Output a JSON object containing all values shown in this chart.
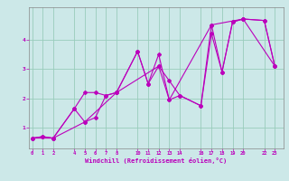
{
  "xlabel": "Windchill (Refroidissement éolien,°C)",
  "background_color": "#cce8e8",
  "grid_color": "#99ccbb",
  "line_color": "#bb00bb",
  "line1": {
    "x": [
      0,
      1,
      2,
      4,
      5,
      6,
      7,
      8,
      10,
      11,
      12,
      13,
      14,
      16,
      17,
      18,
      19,
      20,
      22,
      23
    ],
    "y": [
      0.65,
      0.7,
      0.65,
      1.65,
      2.2,
      2.2,
      2.1,
      2.2,
      3.6,
      2.5,
      3.1,
      2.6,
      2.1,
      1.75,
      4.2,
      2.9,
      4.6,
      4.7,
      4.65,
      3.1
    ]
  },
  "line2": {
    "x": [
      0,
      1,
      2,
      4,
      5,
      6,
      7,
      8,
      10,
      11,
      12,
      13,
      14,
      16,
      17,
      18,
      19,
      20,
      22,
      23
    ],
    "y": [
      0.65,
      0.7,
      0.65,
      1.65,
      1.2,
      1.35,
      2.1,
      2.2,
      3.6,
      2.5,
      3.5,
      1.95,
      2.1,
      1.75,
      4.5,
      2.9,
      4.6,
      4.7,
      4.65,
      3.1
    ]
  },
  "line3": {
    "x": [
      0,
      2,
      5,
      8,
      12,
      13,
      17,
      20,
      23
    ],
    "y": [
      0.65,
      0.65,
      1.2,
      2.2,
      3.1,
      1.95,
      4.5,
      4.7,
      3.1
    ]
  },
  "xticks": [
    0,
    1,
    2,
    4,
    5,
    6,
    7,
    8,
    10,
    11,
    12,
    13,
    14,
    16,
    17,
    18,
    19,
    20,
    22,
    23
  ],
  "yticks": [
    1,
    2,
    3,
    4
  ],
  "xlim": [
    -0.3,
    23.8
  ],
  "ylim": [
    0.3,
    5.1
  ]
}
